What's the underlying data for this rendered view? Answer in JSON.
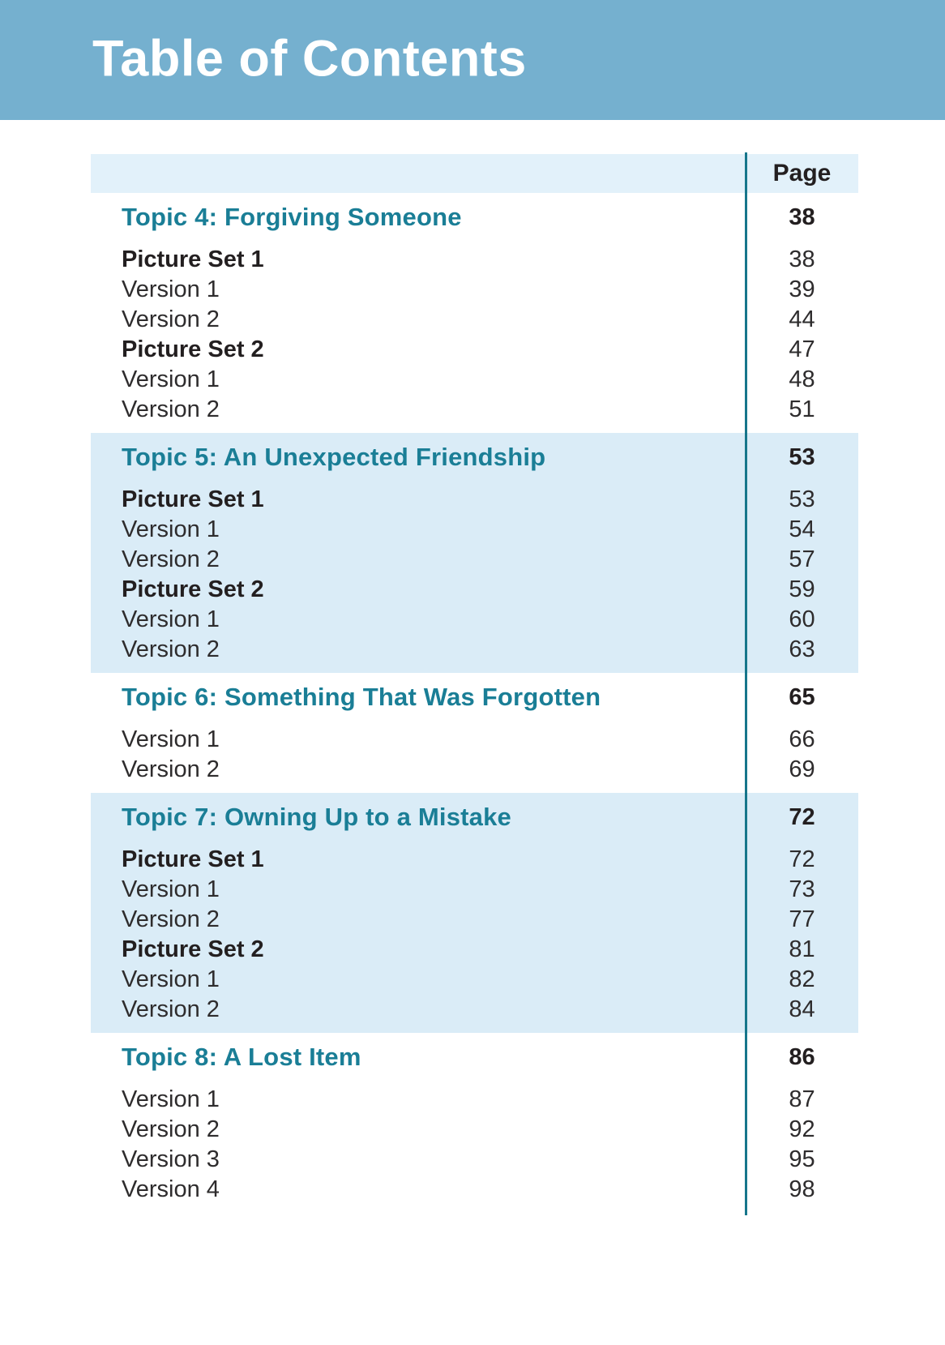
{
  "banner": {
    "title": "Table of Contents"
  },
  "table": {
    "page_header": "Page",
    "sections": [
      {
        "shaded": false,
        "topic": {
          "label": "Topic 4: Forgiving Someone",
          "page": "38"
        },
        "items": [
          {
            "label": "Picture Set 1",
            "page": "38",
            "bold": true
          },
          {
            "label": "Version 1",
            "page": "39",
            "bold": false
          },
          {
            "label": "Version 2",
            "page": "44",
            "bold": false
          },
          {
            "label": "Picture Set 2",
            "page": "47",
            "bold": true
          },
          {
            "label": "Version 1",
            "page": "48",
            "bold": false
          },
          {
            "label": "Version 2",
            "page": "51",
            "bold": false
          }
        ]
      },
      {
        "shaded": true,
        "topic": {
          "label": "Topic 5: An Unexpected Friendship",
          "page": "53"
        },
        "items": [
          {
            "label": "Picture Set 1",
            "page": "53",
            "bold": true
          },
          {
            "label": "Version 1",
            "page": "54",
            "bold": false
          },
          {
            "label": "Version 2",
            "page": "57",
            "bold": false
          },
          {
            "label": "Picture Set 2",
            "page": "59",
            "bold": true
          },
          {
            "label": "Version 1",
            "page": "60",
            "bold": false
          },
          {
            "label": "Version 2",
            "page": "63",
            "bold": false
          }
        ]
      },
      {
        "shaded": false,
        "topic": {
          "label": "Topic 6: Something That Was Forgotten",
          "page": "65"
        },
        "items": [
          {
            "label": "Version 1",
            "page": "66",
            "bold": false
          },
          {
            "label": "Version 2",
            "page": "69",
            "bold": false
          }
        ]
      },
      {
        "shaded": true,
        "topic": {
          "label": "Topic 7: Owning Up to a Mistake",
          "page": "72"
        },
        "items": [
          {
            "label": "Picture Set 1",
            "page": "72",
            "bold": true
          },
          {
            "label": "Version 1",
            "page": "73",
            "bold": false
          },
          {
            "label": "Version 2",
            "page": "77",
            "bold": false
          },
          {
            "label": "Picture Set 2",
            "page": "81",
            "bold": true
          },
          {
            "label": "Version 1",
            "page": "82",
            "bold": false
          },
          {
            "label": "Version 2",
            "page": "84",
            "bold": false
          }
        ]
      },
      {
        "shaded": false,
        "topic": {
          "label": "Topic 8: A Lost Item",
          "page": "86"
        },
        "items": [
          {
            "label": "Version 1",
            "page": "87",
            "bold": false
          },
          {
            "label": "Version 2",
            "page": "92",
            "bold": false
          },
          {
            "label": "Version 3",
            "page": "95",
            "bold": false
          },
          {
            "label": "Version 4",
            "page": "98",
            "bold": false
          }
        ]
      }
    ]
  },
  "colors": {
    "banner_bg": "#75b0cf",
    "header_row_bg": "#e2f1fa",
    "band_bg": "#daecf7",
    "heading_teal": "#1a7e96",
    "rule_teal": "#16768b",
    "text_dark": "#231f20"
  }
}
